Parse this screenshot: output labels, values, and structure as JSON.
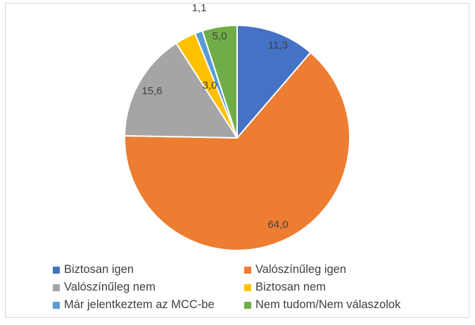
{
  "chart_data": {
    "type": "pie",
    "title": "",
    "categories": [
      "Biztosan igen",
      "Valószínűleg igen",
      "Valószínűleg nem",
      "Biztosan nem",
      "Már jelentkeztem az MCC-be",
      "Nem tudom/Nem válaszolok"
    ],
    "values": [
      11.3,
      64.0,
      15.6,
      3.0,
      1.1,
      5.0
    ],
    "value_labels": [
      "11,3",
      "64,0",
      "15,6",
      "3,0",
      "1,1",
      "5,0"
    ],
    "colors": [
      "#4472C4",
      "#ED7D31",
      "#A5A5A5",
      "#FFC000",
      "#5B9BD5",
      "#70AD47"
    ],
    "start": "top, clockwise",
    "legend_position": "bottom"
  }
}
